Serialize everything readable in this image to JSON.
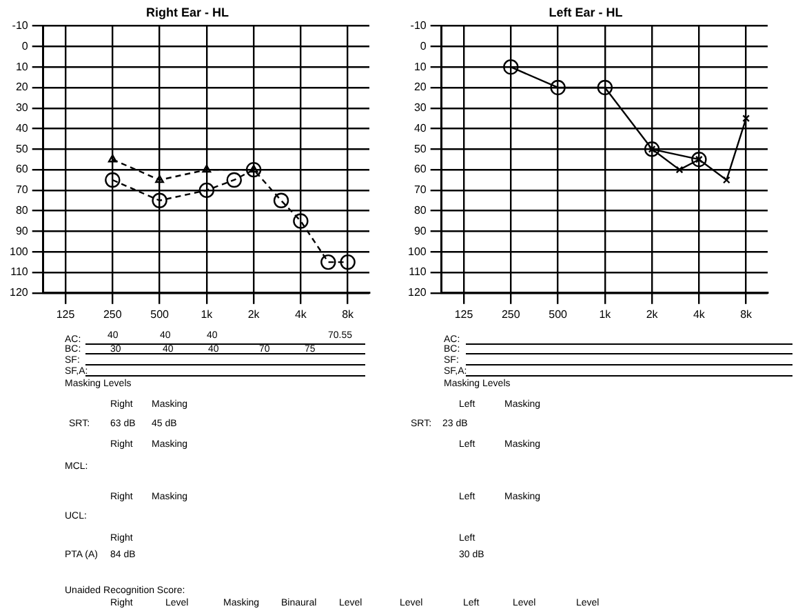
{
  "chart_data": [
    {
      "type": "line",
      "title": "Right Ear - HL",
      "log": "x",
      "xlim": [
        90,
        11000
      ],
      "ylim": [
        120,
        -10
      ],
      "xticks": [
        125,
        250,
        500,
        {
          "value": 1000,
          "label": "1k"
        },
        {
          "value": 2000,
          "label": "2k"
        },
        {
          "value": 4000,
          "label": "4k"
        },
        {
          "value": 8000,
          "label": "8k"
        }
      ],
      "yticks": [
        -10,
        0,
        10,
        20,
        30,
        40,
        50,
        60,
        70,
        80,
        90,
        100,
        110,
        120
      ],
      "grid": true,
      "legend": false,
      "series": [
        {
          "color": "#000000",
          "marker": "circle",
          "line_style": "dashed",
          "x": [
            250,
            500,
            1000,
            1500,
            2000,
            3000,
            4000,
            6000,
            8000
          ],
          "values": [
            65,
            75,
            70,
            65,
            60,
            75,
            85,
            105,
            105
          ]
        },
        {
          "color": "#000000",
          "marker": "triangle",
          "line_style": "dashed",
          "x": [
            250,
            500,
            1000,
            2000
          ],
          "values": [
            55,
            65,
            60,
            60
          ]
        }
      ],
      "annotations": [
        "AC:",
        "40",
        "40",
        "40",
        "70.55",
        "BC:",
        "30",
        "40",
        "40",
        "70",
        "75",
        "SF:",
        "SF,A:",
        "Masking Levels",
        "Right",
        "Masking",
        "SRT:",
        "63 dB",
        "45 dB",
        "Right",
        "Masking",
        "MCL:",
        "Right",
        "Masking",
        "UCL:",
        "Right",
        "PTA (A)",
        "84 dB",
        "Unaided Recognition Score:",
        "Right",
        "Level",
        "Masking",
        "Binaural",
        "Level",
        "Level",
        "Left",
        "Level",
        "Level"
      ]
    },
    {
      "type": "line",
      "title": "Left Ear - HL",
      "log": "x",
      "xlim": [
        90,
        11000
      ],
      "ylim": [
        120,
        -10
      ],
      "xticks": [
        125,
        250,
        500,
        {
          "value": 1000,
          "label": "1k"
        },
        {
          "value": 2000,
          "label": "2k"
        },
        {
          "value": 4000,
          "label": "4k"
        },
        {
          "value": 8000,
          "label": "8k"
        }
      ],
      "yticks": [
        -10,
        0,
        10,
        20,
        30,
        40,
        50,
        60,
        70,
        80,
        90,
        100,
        110,
        120
      ],
      "grid": true,
      "legend": false,
      "series": [
        {
          "color": "#000000",
          "marker": "circle",
          "line_style": "solid",
          "x": [
            250,
            500,
            1000,
            2000,
            4000
          ],
          "values": [
            10,
            20,
            20,
            50,
            55
          ]
        },
        {
          "color": "#000000",
          "marker": "cross",
          "line_style": "solid",
          "x": [
            2000,
            3000,
            4000,
            6000,
            8000
          ],
          "values": [
            50,
            60,
            55,
            65,
            35
          ]
        }
      ],
      "annotations": [
        "AC:",
        "BC:",
        "SF:",
        "SF,A:",
        "Masking Levels",
        "Left",
        "Masking",
        "SRT:",
        "23 dB",
        "Left",
        "Masking",
        "Left",
        "Masking",
        "Left",
        "30 dB"
      ]
    }
  ]
}
